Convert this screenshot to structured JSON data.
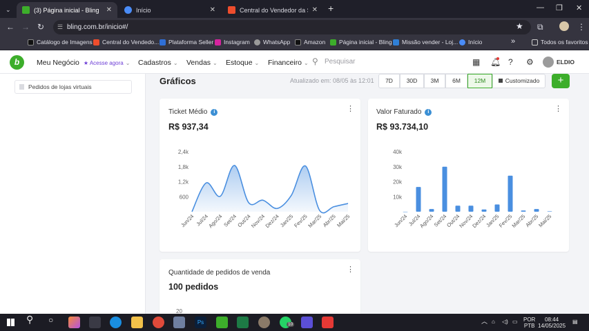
{
  "tabs": [
    {
      "title": "(3) Página inicial - Bling",
      "favicon": "bling-favicon",
      "color": "#3dae2b",
      "active": true,
      "close": "✕"
    },
    {
      "title": "Início",
      "favicon": "google-favicon",
      "color": "#4a8cf7",
      "active": false,
      "close": "✕"
    },
    {
      "title": "Central do Vendedor da Shope",
      "favicon": "shopee-favicon",
      "color": "#ee4d2d",
      "active": false,
      "close": "✕"
    }
  ],
  "new_tab": "+",
  "window_controls": {
    "minimize": "—",
    "maximize": "❐",
    "close": "✕"
  },
  "address_bar": {
    "url": "bling.com.br/inicio#/"
  },
  "bookmarks": [
    {
      "label": "Catálogo de Imagens",
      "color": "#111"
    },
    {
      "label": "Central do Vendedo...",
      "color": "#ee4d2d"
    },
    {
      "label": "Plataforma Seller",
      "color": "#2f6fd6"
    },
    {
      "label": "Instagram",
      "color": "#d6249f"
    },
    {
      "label": "WhatsApp",
      "color": "#9a9a9a"
    },
    {
      "label": "Amazon",
      "color": "#111"
    },
    {
      "label": "Página inicial - Bling",
      "color": "#3dae2b"
    },
    {
      "label": "Missão vender - Loj...",
      "color": "#2f7fd6"
    },
    {
      "label": "Início",
      "color": "#4a8cf7"
    }
  ],
  "bookmarks_more": "»",
  "all_bookmarks": "Todos os favoritos",
  "app": {
    "logo": "b",
    "nav": [
      {
        "label": "Meu Negócio",
        "badge": "★ Acesse agora"
      },
      {
        "label": "Cadastros"
      },
      {
        "label": "Vendas"
      },
      {
        "label": "Estoque"
      },
      {
        "label": "Financeiro"
      }
    ],
    "search_placeholder": "Pesquisar",
    "user_name": "ELDIO"
  },
  "sidebar": {
    "item": "Pedidos de lojas virtuais"
  },
  "section": {
    "title": "Gráficos",
    "updated": "Atualizado em: 08/05 às 12:01",
    "periods": [
      "7D",
      "30D",
      "3M",
      "6M",
      "12M",
      "Customizado"
    ],
    "selected_period": "12M",
    "add_label": "+"
  },
  "cards": {
    "ticket": {
      "title": "Ticket Médio",
      "value": "R$ 937,34"
    },
    "faturado": {
      "title": "Valor Faturado",
      "value": "R$ 93.734,10"
    },
    "pedidos": {
      "title": "Quantidade de pedidos de venda",
      "value": "100 pedidos",
      "first_tick": "20"
    }
  },
  "chart_data": [
    {
      "type": "area",
      "title": "Ticket Médio",
      "categories": [
        "Jun/24",
        "Jul/24",
        "Ago/24",
        "Set/24",
        "Out/24",
        "Nov/24",
        "Dez/24",
        "Jan/25",
        "Fev/25",
        "Mar/25",
        "Abr/25",
        "Mai/25"
      ],
      "values": [
        0,
        1150,
        620,
        1850,
        360,
        460,
        130,
        650,
        1830,
        50,
        200,
        330
      ],
      "ylim": [
        0,
        2400
      ],
      "yticks": [
        "2,4k",
        "1,8k",
        "1,2k",
        "600"
      ],
      "color": "#4a8fe0"
    },
    {
      "type": "bar",
      "title": "Valor Faturado",
      "categories": [
        "Jun/24",
        "Jul/24",
        "Ago/24",
        "Set/24",
        "Out/24",
        "Nov/24",
        "Dez/24",
        "Jan/25",
        "Fev/25",
        "Mar/25",
        "Abr/25",
        "Mai/25"
      ],
      "values": [
        0,
        16500,
        1800,
        30000,
        4000,
        4000,
        1500,
        4800,
        24000,
        800,
        1800,
        300
      ],
      "ylim": [
        0,
        40000
      ],
      "yticks": [
        "40k",
        "30k",
        "20k",
        "10k"
      ],
      "color": "#4a8fe0"
    }
  ],
  "taskbar": {
    "lang": "POR",
    "layout": "PTB",
    "time": "08:44",
    "date": "14/05/2025",
    "whatsapp_badge": "10"
  }
}
